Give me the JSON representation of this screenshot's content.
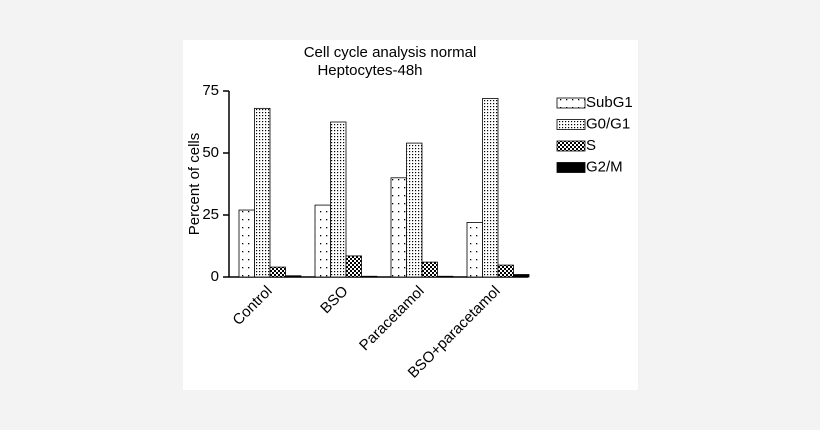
{
  "chart_data": {
    "type": "bar",
    "title": "Cell cycle analysis normal",
    "subtitle": "Heptocytes-48h",
    "y_label": "Percent of cells",
    "categories": [
      "Control",
      "BSO",
      "Paracetamol",
      "BSO+paracetamol"
    ],
    "series": [
      {
        "name": "SubG1",
        "color": "#000000",
        "pattern": "sparse-dots",
        "values": [
          27,
          29,
          40,
          22
        ]
      },
      {
        "name": "G0/G1",
        "color": "#000000",
        "pattern": "dense-dots",
        "values": [
          68,
          62.5,
          54,
          72
        ]
      },
      {
        "name": "S",
        "color": "#000000",
        "pattern": "checker",
        "values": [
          4,
          8.5,
          6,
          4.8
        ]
      },
      {
        "name": "G2/M",
        "color": "#000000",
        "pattern": "solid",
        "values": [
          0.5,
          0.3,
          0.3,
          1
        ]
      }
    ],
    "ylim": [
      0,
      75
    ],
    "yticks": [
      0,
      25,
      50,
      75
    ],
    "grid": false,
    "legend": "right"
  }
}
